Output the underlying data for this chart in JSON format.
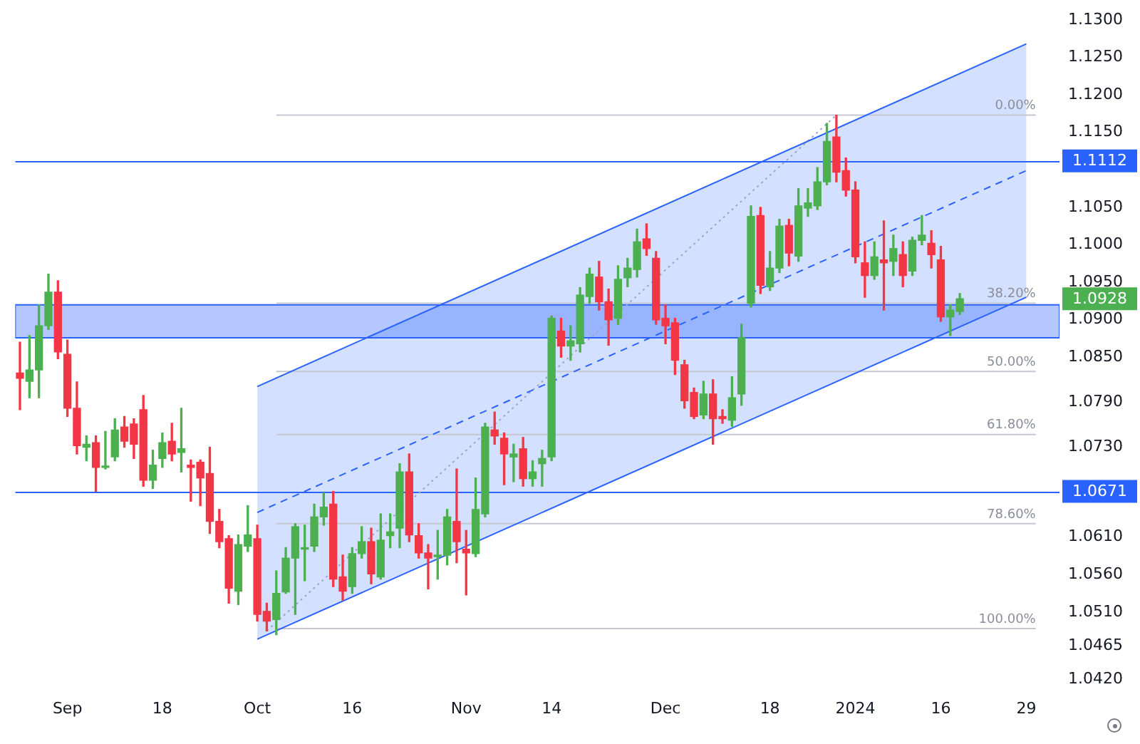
{
  "chart_data": {
    "type": "candlestick",
    "categories": [
      null,
      null,
      null,
      null,
      null,
      "Sep",
      null,
      null,
      null,
      null,
      null,
      null,
      null,
      null,
      null,
      "18",
      null,
      null,
      null,
      null,
      null,
      null,
      null,
      null,
      null,
      "Oct",
      null,
      null,
      null,
      null,
      null,
      null,
      null,
      null,
      null,
      "16",
      null,
      null,
      null,
      null,
      null,
      null,
      null,
      null,
      null,
      null,
      null,
      "Nov",
      null,
      null,
      null,
      null,
      null,
      null,
      null,
      null,
      "14",
      null,
      null,
      null,
      null,
      null,
      null,
      null,
      null,
      null,
      null,
      null,
      "Dec",
      null,
      null,
      null,
      null,
      null,
      null,
      null,
      null,
      null,
      null,
      "18",
      null,
      null,
      null,
      null,
      null,
      null,
      null,
      null,
      "2024",
      null,
      null,
      null,
      null,
      null,
      null,
      null,
      null,
      "16",
      null,
      null,
      null,
      null,
      null,
      null,
      null,
      null,
      "29",
      null,
      null,
      null
    ],
    "ohlc": [
      [
        1.0829,
        1.087,
        1.078,
        1.0822
      ],
      [
        1.0818,
        1.0879,
        1.0796,
        1.0833
      ],
      [
        1.0833,
        1.092,
        1.0796,
        1.0892
      ],
      [
        1.0892,
        1.0961,
        1.0887,
        1.0937
      ],
      [
        1.0937,
        1.0952,
        1.0848,
        1.0857
      ],
      [
        1.0854,
        1.0873,
        1.0771,
        1.0782
      ],
      [
        1.0782,
        1.0817,
        1.0721,
        1.0732
      ],
      [
        1.073,
        1.0745,
        1.0712,
        1.0734
      ],
      [
        1.0736,
        1.0745,
        1.0671,
        1.0703
      ],
      [
        1.0703,
        1.0751,
        1.0701,
        1.0705
      ],
      [
        1.0717,
        1.0768,
        1.0712,
        1.0753
      ],
      [
        1.0757,
        1.0771,
        1.073,
        1.0738
      ],
      [
        1.0761,
        1.0768,
        1.0715,
        1.0734
      ],
      [
        1.078,
        1.0799,
        1.0678,
        1.0686
      ],
      [
        1.0686,
        1.0726,
        1.0675,
        1.0706
      ],
      [
        1.0715,
        1.0749,
        1.0703,
        1.0736
      ],
      [
        1.0738,
        1.0762,
        1.0712,
        1.0721
      ],
      [
        1.0723,
        1.0782,
        1.0697,
        1.0728
      ],
      [
        1.0706,
        1.0713,
        1.0658,
        1.0703
      ],
      [
        1.071,
        1.0713,
        1.0652,
        1.0689
      ],
      [
        1.0695,
        1.073,
        1.0615,
        1.0631
      ],
      [
        1.0631,
        1.0647,
        1.0596,
        1.0604
      ],
      [
        1.0608,
        1.0612,
        1.0522,
        1.0542
      ],
      [
        1.0538,
        1.0613,
        1.052,
        1.06
      ],
      [
        1.0598,
        1.0652,
        1.0591,
        1.0613
      ],
      [
        1.0608,
        1.0626,
        1.0498,
        1.0507
      ],
      [
        1.0511,
        1.0522,
        1.0485,
        1.0498
      ],
      [
        1.05,
        1.0565,
        1.048,
        1.0535
      ],
      [
        1.0537,
        1.0596,
        1.0535,
        1.0582
      ],
      [
        1.0582,
        1.0628,
        1.0507,
        1.0624
      ],
      [
        1.0594,
        1.0626,
        1.0552,
        1.0596
      ],
      [
        1.0598,
        1.0654,
        1.0591,
        1.0637
      ],
      [
        1.0637,
        1.0669,
        1.0626,
        1.065
      ],
      [
        1.0654,
        1.0671,
        1.0544,
        1.0554
      ],
      [
        1.0557,
        1.0586,
        1.0526,
        1.0538
      ],
      [
        1.0544,
        1.0596,
        1.0535,
        1.0588
      ],
      [
        1.0588,
        1.0624,
        1.0582,
        1.0604
      ],
      [
        1.0604,
        1.0622,
        1.0548,
        1.0561
      ],
      [
        1.0557,
        1.0641,
        1.0554,
        1.0606
      ],
      [
        1.0612,
        1.0641,
        1.0596,
        1.0617
      ],
      [
        1.0622,
        1.0708,
        1.0596,
        1.0697
      ],
      [
        1.0697,
        1.0721,
        1.0604,
        1.0613
      ],
      [
        1.0612,
        1.0628,
        1.0582,
        1.0589
      ],
      [
        1.0589,
        1.06,
        1.0541,
        1.0582
      ],
      [
        1.0584,
        1.0619,
        1.0554,
        1.0586
      ],
      [
        1.0586,
        1.0647,
        1.0573,
        1.0637
      ],
      [
        1.0631,
        1.0701,
        1.0576,
        1.0604
      ],
      [
        1.0594,
        1.0619,
        1.0533,
        1.0589
      ],
      [
        1.0588,
        1.0689,
        1.0584,
        1.0647
      ],
      [
        1.0641,
        1.0762,
        1.0637,
        1.0757
      ],
      [
        1.0753,
        1.0777,
        1.0734,
        1.0745
      ],
      [
        1.0742,
        1.0749,
        1.068,
        1.0721
      ],
      [
        1.0717,
        1.0734,
        1.0684,
        1.0721
      ],
      [
        1.0728,
        1.0743,
        1.0678,
        1.0688
      ],
      [
        1.0688,
        1.0712,
        1.0678,
        1.0697
      ],
      [
        1.0708,
        1.0726,
        1.0678,
        1.0715
      ],
      [
        1.0717,
        1.0905,
        1.0712,
        1.0902
      ],
      [
        1.0885,
        1.0902,
        1.085,
        1.0865
      ],
      [
        1.0865,
        1.0892,
        1.0846,
        1.0872
      ],
      [
        1.0868,
        1.0943,
        1.0857,
        1.0933
      ],
      [
        1.0931,
        1.0969,
        1.0922,
        1.0961
      ],
      [
        1.0957,
        1.0978,
        1.0913,
        1.0924
      ],
      [
        1.0924,
        1.0941,
        1.0866,
        1.09
      ],
      [
        1.0902,
        1.0972,
        1.0894,
        1.0954
      ],
      [
        1.0956,
        1.0982,
        1.0944,
        1.0969
      ],
      [
        1.0967,
        1.1021,
        1.0957,
        1.1004
      ],
      [
        1.1008,
        1.1028,
        1.0986,
        1.0995
      ],
      [
        1.0982,
        1.0991,
        1.0894,
        1.09
      ],
      [
        1.0902,
        1.092,
        1.0868,
        1.0892
      ],
      [
        1.0896,
        1.0902,
        1.0827,
        1.0846
      ],
      [
        1.084,
        1.0846,
        1.0782,
        1.0792
      ],
      [
        1.0803,
        1.0809,
        1.0768,
        1.0771
      ],
      [
        1.0773,
        1.0818,
        1.0768,
        1.0801
      ],
      [
        1.0801,
        1.082,
        1.0734,
        1.0768
      ],
      [
        1.0771,
        1.078,
        1.0762,
        1.0768
      ],
      [
        1.0766,
        1.0824,
        1.0758,
        1.0796
      ],
      [
        1.0801,
        1.0894,
        1.0786,
        1.0876
      ],
      [
        1.0922,
        1.1052,
        1.0917,
        1.1038
      ],
      [
        1.1039,
        1.105,
        1.0935,
        1.0946
      ],
      [
        1.0944,
        1.0991,
        1.0939,
        1.0969
      ],
      [
        1.0969,
        1.1034,
        1.0963,
        1.1025
      ],
      [
        1.1026,
        1.1034,
        1.0972,
        1.0989
      ],
      [
        1.0985,
        1.1075,
        1.0978,
        1.1052
      ],
      [
        1.1049,
        1.1075,
        1.1038,
        1.1056
      ],
      [
        1.1052,
        1.1103,
        1.1047,
        1.1084
      ],
      [
        1.1084,
        1.1162,
        1.108,
        1.1138
      ],
      [
        1.1144,
        1.1173,
        1.1084,
        1.1097
      ],
      [
        1.1099,
        1.1116,
        1.1065,
        1.1073
      ],
      [
        1.1073,
        1.1084,
        1.0976,
        1.0984
      ],
      [
        1.0976,
        1.1004,
        1.093,
        1.0959
      ],
      [
        1.0959,
        1.1004,
        1.0954,
        1.0984
      ],
      [
        1.098,
        1.1032,
        1.0913,
        1.0976
      ],
      [
        1.0978,
        1.1013,
        1.0959,
        1.0995
      ],
      [
        1.0987,
        1.1004,
        1.0944,
        1.0959
      ],
      [
        1.0965,
        1.101,
        1.0959,
        1.1006
      ],
      [
        1.1006,
        1.1039,
        1.1,
        1.1013
      ],
      [
        1.1002,
        1.1019,
        1.0969,
        1.0987
      ],
      [
        1.098,
        1.0998,
        1.0898,
        1.0904
      ],
      [
        1.0904,
        1.092,
        1.0879,
        1.0913
      ],
      [
        1.0911,
        1.0935,
        1.0907,
        1.0928
      ],
      null,
      null,
      null,
      null,
      null,
      null,
      null,
      null,
      null,
      null
    ],
    "colors": [
      "#f23645",
      "#4caf50",
      "#4caf50",
      "#4caf50",
      "#f23645",
      "#f23645",
      "#f23645",
      "#4caf50",
      "#f23645",
      "#4caf50",
      "#4caf50",
      "#f23645",
      "#f23645",
      "#f23645",
      "#4caf50",
      "#4caf50",
      "#f23645",
      "#4caf50",
      "#f23645",
      "#f23645",
      "#f23645",
      "#f23645",
      "#f23645",
      "#4caf50",
      "#4caf50",
      "#f23645",
      "#f23645",
      "#4caf50",
      "#4caf50",
      "#4caf50",
      "#4caf50",
      "#4caf50",
      "#4caf50",
      "#f23645",
      "#f23645",
      "#4caf50",
      "#4caf50",
      "#f23645",
      "#4caf50",
      "#4caf50",
      "#4caf50",
      "#f23645",
      "#f23645",
      "#f23645",
      "#4caf50",
      "#4caf50",
      "#f23645",
      "#f23645",
      "#4caf50",
      "#4caf50",
      "#f23645",
      "#f23645",
      "#4caf50",
      "#f23645",
      "#4caf50",
      "#4caf50",
      "#4caf50",
      "#f23645",
      "#4caf50",
      "#4caf50",
      "#4caf50",
      "#f23645",
      "#f23645",
      "#4caf50",
      "#4caf50",
      "#4caf50",
      "#f23645",
      "#f23645",
      "#f23645",
      "#f23645",
      "#f23645",
      "#f23645",
      "#4caf50",
      "#f23645",
      "#f23645",
      "#4caf50",
      "#4caf50",
      "#4caf50",
      "#f23645",
      "#4caf50",
      "#4caf50",
      "#f23645",
      "#4caf50",
      "#4caf50",
      "#4caf50",
      "#4caf50",
      "#f23645",
      "#f23645",
      "#f23645",
      "#f23645",
      "#4caf50",
      "#f23645",
      "#4caf50",
      "#f23645",
      "#4caf50",
      "#4caf50",
      "#f23645",
      "#f23645",
      "#4caf50",
      "#4caf50",
      null,
      null,
      null,
      null,
      null,
      null,
      null,
      null,
      null,
      null
    ],
    "series": [
      {
        "type": "line",
        "color": "#2962ff",
        "line_style": "dashed",
        "values": [
          null,
          null,
          null,
          null,
          null,
          null,
          null,
          null,
          null,
          null,
          null,
          null,
          null,
          null,
          null,
          null,
          null,
          null,
          null,
          null,
          null,
          null,
          null,
          null,
          null,
          1.0643,
          null,
          null,
          null,
          null,
          null,
          null,
          null,
          null,
          null,
          null,
          null,
          null,
          null,
          null,
          null,
          null,
          null,
          null,
          null,
          null,
          null,
          null,
          null,
          null,
          null,
          null,
          null,
          null,
          null,
          null,
          null,
          null,
          null,
          null,
          null,
          null,
          null,
          null,
          null,
          null,
          null,
          null,
          null,
          null,
          null,
          null,
          null,
          null,
          null,
          null,
          null,
          null,
          null,
          null,
          null,
          null,
          null,
          null,
          null,
          null,
          null,
          null,
          null,
          null,
          null,
          null,
          null,
          null,
          null,
          null,
          null,
          null,
          null,
          null,
          null,
          null,
          null,
          null,
          null,
          null,
          1.1099,
          null,
          null,
          null
        ],
        "lower": [
          null,
          null,
          null,
          null,
          null,
          null,
          null,
          null,
          null,
          null,
          null,
          null,
          null,
          null,
          null,
          null,
          null,
          null,
          null,
          null,
          null,
          null,
          null,
          null,
          null,
          1.0474,
          null,
          null,
          null,
          null,
          null,
          null,
          null,
          null,
          null,
          null,
          null,
          null,
          null,
          null,
          null,
          null,
          null,
          null,
          null,
          null,
          null,
          null,
          null,
          null,
          null,
          null,
          null,
          null,
          null,
          null,
          null,
          null,
          null,
          null,
          null,
          null,
          null,
          null,
          null,
          null,
          null,
          null,
          null,
          null,
          null,
          null,
          null,
          null,
          null,
          null,
          null,
          null,
          null,
          null,
          null,
          null,
          null,
          null,
          null,
          null,
          null,
          null,
          null,
          null,
          null,
          null,
          null,
          null,
          null,
          null,
          null,
          null,
          null,
          null,
          null,
          null,
          null,
          null,
          null,
          null,
          1.093,
          null,
          null,
          null
        ],
        "upper": [
          null,
          null,
          null,
          null,
          null,
          null,
          null,
          null,
          null,
          null,
          null,
          null,
          null,
          null,
          null,
          null,
          null,
          null,
          null,
          null,
          null,
          null,
          null,
          null,
          null,
          1.0811,
          null,
          null,
          null,
          null,
          null,
          null,
          null,
          null,
          null,
          null,
          null,
          null,
          null,
          null,
          null,
          null,
          null,
          null,
          null,
          null,
          null,
          null,
          null,
          null,
          null,
          null,
          null,
          null,
          null,
          null,
          null,
          null,
          null,
          null,
          null,
          null,
          null,
          null,
          null,
          null,
          null,
          null,
          null,
          null,
          null,
          null,
          null,
          null,
          null,
          null,
          null,
          null,
          null,
          null,
          null,
          null,
          null,
          null,
          null,
          null,
          null,
          null,
          null,
          null,
          null,
          null,
          null,
          null,
          null,
          null,
          null,
          null,
          null,
          null,
          null,
          null,
          null,
          null,
          null,
          null,
          1.1268,
          null,
          null,
          null
        ]
      },
      {
        "type": "line",
        "color": "#2962ff",
        "line_style": "solid",
        "values": [
          null,
          null,
          null,
          null,
          null,
          null,
          null,
          null,
          null,
          null,
          null,
          null,
          null,
          null,
          null,
          null,
          null,
          null,
          null,
          null,
          null,
          null,
          null,
          null,
          null,
          1.0811,
          null,
          null,
          null,
          null,
          null,
          null,
          null,
          null,
          null,
          null,
          null,
          null,
          null,
          null,
          null,
          null,
          null,
          null,
          null,
          null,
          null,
          null,
          null,
          null,
          null,
          null,
          null,
          null,
          null,
          null,
          null,
          null,
          null,
          null,
          null,
          null,
          null,
          null,
          null,
          null,
          null,
          null,
          null,
          null,
          null,
          null,
          null,
          null,
          null,
          null,
          null,
          null,
          null,
          null,
          null,
          null,
          null,
          null,
          null,
          null,
          null,
          null,
          null,
          null,
          null,
          null,
          null,
          null,
          null,
          null,
          null,
          null,
          null,
          null,
          null,
          null,
          null,
          null,
          null,
          null,
          1.1268,
          null,
          null,
          null
        ]
      },
      {
        "type": "line",
        "color": "#2962ff",
        "line_style": "solid",
        "values": [
          null,
          null,
          null,
          null,
          null,
          null,
          null,
          null,
          null,
          null,
          null,
          null,
          null,
          null,
          null,
          null,
          null,
          null,
          null,
          null,
          null,
          null,
          null,
          null,
          null,
          1.0474,
          null,
          null,
          null,
          null,
          null,
          null,
          null,
          null,
          null,
          null,
          null,
          null,
          null,
          null,
          null,
          null,
          null,
          null,
          null,
          null,
          null,
          null,
          null,
          null,
          null,
          null,
          null,
          null,
          null,
          null,
          null,
          null,
          null,
          null,
          null,
          null,
          null,
          null,
          null,
          null,
          null,
          null,
          null,
          null,
          null,
          null,
          null,
          null,
          null,
          null,
          null,
          null,
          null,
          null,
          null,
          null,
          null,
          null,
          null,
          null,
          null,
          null,
          null,
          null,
          null,
          null,
          null,
          null,
          null,
          null,
          null,
          null,
          null,
          null,
          null,
          null,
          null,
          null,
          null,
          null,
          1.093,
          null,
          null,
          null
        ]
      },
      {
        "type": "line",
        "color": "#9aa6c8",
        "line_style": "dotted",
        "values": [
          null,
          null,
          null,
          null,
          null,
          null,
          null,
          null,
          null,
          null,
          null,
          null,
          null,
          null,
          null,
          null,
          null,
          null,
          null,
          null,
          null,
          null,
          null,
          null,
          null,
          null,
          1.0485,
          null,
          null,
          null,
          null,
          null,
          null,
          null,
          null,
          null,
          null,
          null,
          null,
          null,
          null,
          null,
          null,
          null,
          null,
          null,
          null,
          null,
          null,
          null,
          null,
          null,
          null,
          null,
          null,
          null,
          null,
          null,
          null,
          null,
          null,
          null,
          null,
          null,
          null,
          null,
          null,
          null,
          null,
          null,
          null,
          null,
          null,
          null,
          null,
          null,
          null,
          null,
          null,
          null,
          null,
          null,
          null,
          null,
          null,
          null,
          1.1173,
          null,
          null,
          null,
          null,
          null,
          null,
          null,
          null,
          null,
          null,
          null,
          null,
          null,
          null,
          null,
          null,
          null,
          null,
          null,
          null,
          null,
          null,
          null
        ]
      },
      {
        "type": "line",
        "name": "0.00%",
        "color": "#c4c7cf",
        "line_style": "solid",
        "values": [
          null,
          null,
          null,
          null,
          null,
          null,
          null,
          null,
          null,
          null,
          null,
          null,
          null,
          null,
          null,
          null,
          null,
          null,
          null,
          null,
          null,
          null,
          null,
          null,
          null,
          null,
          null,
          1.1173,
          null,
          null,
          null,
          null,
          null,
          null,
          null,
          null,
          null,
          null,
          null,
          null,
          null,
          null,
          null,
          null,
          null,
          null,
          null,
          null,
          null,
          null,
          null,
          null,
          null,
          null,
          null,
          null,
          null,
          null,
          null,
          null,
          null,
          null,
          null,
          null,
          null,
          null,
          null,
          null,
          null,
          null,
          null,
          null,
          null,
          null,
          null,
          null,
          null,
          null,
          null,
          null,
          null,
          null,
          null,
          null,
          null,
          null,
          null,
          null,
          null,
          null,
          null,
          null,
          null,
          null,
          null,
          null,
          null,
          null,
          null,
          null,
          null,
          null,
          null,
          null,
          null,
          null,
          null,
          1.1173,
          null,
          null
        ]
      },
      {
        "type": "line",
        "name": "38.20%",
        "color": "#c4c7cf",
        "line_style": "solid",
        "values": [
          null,
          null,
          null,
          null,
          null,
          null,
          null,
          null,
          null,
          null,
          null,
          null,
          null,
          null,
          null,
          null,
          null,
          null,
          null,
          null,
          null,
          null,
          null,
          null,
          null,
          null,
          null,
          1.0922,
          null,
          null,
          null,
          null,
          null,
          null,
          null,
          null,
          null,
          null,
          null,
          null,
          null,
          null,
          null,
          null,
          null,
          null,
          null,
          null,
          null,
          null,
          null,
          null,
          null,
          null,
          null,
          null,
          null,
          null,
          null,
          null,
          null,
          null,
          null,
          null,
          null,
          null,
          null,
          null,
          null,
          null,
          null,
          null,
          null,
          null,
          null,
          null,
          null,
          null,
          null,
          null,
          null,
          null,
          null,
          null,
          null,
          null,
          null,
          null,
          null,
          null,
          null,
          null,
          null,
          null,
          null,
          null,
          null,
          null,
          null,
          null,
          null,
          null,
          null,
          null,
          null,
          null,
          null,
          1.0922,
          null,
          null
        ]
      },
      {
        "type": "line",
        "name": "50.00%",
        "color": "#c4c7cf",
        "line_style": "solid",
        "values": [
          null,
          null,
          null,
          null,
          null,
          null,
          null,
          null,
          null,
          null,
          null,
          null,
          null,
          null,
          null,
          null,
          null,
          null,
          null,
          null,
          null,
          null,
          null,
          null,
          null,
          null,
          null,
          1.0831,
          null,
          null,
          null,
          null,
          null,
          null,
          null,
          null,
          null,
          null,
          null,
          null,
          null,
          null,
          null,
          null,
          null,
          null,
          null,
          null,
          null,
          null,
          null,
          null,
          null,
          null,
          null,
          null,
          null,
          null,
          null,
          null,
          null,
          null,
          null,
          null,
          null,
          null,
          null,
          null,
          null,
          null,
          null,
          null,
          null,
          null,
          null,
          null,
          null,
          null,
          null,
          null,
          null,
          null,
          null,
          null,
          null,
          null,
          null,
          null,
          null,
          null,
          null,
          null,
          null,
          null,
          null,
          null,
          null,
          null,
          null,
          null,
          null,
          null,
          null,
          null,
          null,
          null,
          null,
          1.0831,
          null,
          null
        ]
      },
      {
        "type": "line",
        "name": "61.80%",
        "color": "#c4c7cf",
        "line_style": "solid",
        "values": [
          null,
          null,
          null,
          null,
          null,
          null,
          null,
          null,
          null,
          null,
          null,
          null,
          null,
          null,
          null,
          null,
          null,
          null,
          null,
          null,
          null,
          null,
          null,
          null,
          null,
          null,
          null,
          1.0747,
          null,
          null,
          null,
          null,
          null,
          null,
          null,
          null,
          null,
          null,
          null,
          null,
          null,
          null,
          null,
          null,
          null,
          null,
          null,
          null,
          null,
          null,
          null,
          null,
          null,
          null,
          null,
          null,
          null,
          null,
          null,
          null,
          null,
          null,
          null,
          null,
          null,
          null,
          null,
          null,
          null,
          null,
          null,
          null,
          null,
          null,
          null,
          null,
          null,
          null,
          null,
          null,
          null,
          null,
          null,
          null,
          null,
          null,
          null,
          null,
          null,
          null,
          null,
          null,
          null,
          null,
          null,
          null,
          null,
          null,
          null,
          null,
          null,
          null,
          null,
          null,
          null,
          null,
          null,
          1.0747,
          null,
          null
        ]
      },
      {
        "type": "line",
        "name": "78.60%",
        "color": "#c4c7cf",
        "line_style": "solid",
        "values": [
          null,
          null,
          null,
          null,
          null,
          null,
          null,
          null,
          null,
          null,
          null,
          null,
          null,
          null,
          null,
          null,
          null,
          null,
          null,
          null,
          null,
          null,
          null,
          null,
          null,
          null,
          null,
          1.0628,
          null,
          null,
          null,
          null,
          null,
          null,
          null,
          null,
          null,
          null,
          null,
          null,
          null,
          null,
          null,
          null,
          null,
          null,
          null,
          null,
          null,
          null,
          null,
          null,
          null,
          null,
          null,
          null,
          null,
          null,
          null,
          null,
          null,
          null,
          null,
          null,
          null,
          null,
          null,
          null,
          null,
          null,
          null,
          null,
          null,
          null,
          null,
          null,
          null,
          null,
          null,
          null,
          null,
          null,
          null,
          null,
          null,
          null,
          null,
          null,
          null,
          null,
          null,
          null,
          null,
          null,
          null,
          null,
          null,
          null,
          null,
          null,
          null,
          null,
          null,
          null,
          null,
          null,
          null,
          1.0628,
          null,
          null
        ]
      },
      {
        "type": "line",
        "name": "100.00%",
        "color": "#c4c7cf",
        "line_style": "solid",
        "values": [
          null,
          null,
          null,
          null,
          null,
          null,
          null,
          null,
          null,
          null,
          null,
          null,
          null,
          null,
          null,
          null,
          null,
          null,
          null,
          null,
          null,
          null,
          null,
          null,
          null,
          null,
          null,
          1.0488,
          null,
          null,
          null,
          null,
          null,
          null,
          null,
          null,
          null,
          null,
          null,
          null,
          null,
          null,
          null,
          null,
          null,
          null,
          null,
          null,
          null,
          null,
          null,
          null,
          null,
          null,
          null,
          null,
          null,
          null,
          null,
          null,
          null,
          null,
          null,
          null,
          null,
          null,
          null,
          null,
          null,
          null,
          null,
          null,
          null,
          null,
          null,
          null,
          null,
          null,
          null,
          null,
          null,
          null,
          null,
          null,
          null,
          null,
          null,
          null,
          null,
          null,
          null,
          null,
          null,
          null,
          null,
          null,
          null,
          null,
          null,
          null,
          null,
          null,
          null,
          null,
          null,
          null,
          null,
          1.0488,
          null,
          null
        ]
      }
    ],
    "ylim": [
      1.042,
      1.13
    ],
    "yticks": [
      {
        "value": 1.13,
        "label": "1.1300"
      },
      {
        "value": 1.125,
        "label": "1.1250"
      },
      {
        "value": 1.12,
        "label": "1.1200"
      },
      {
        "value": 1.115,
        "label": "1.1150"
      },
      {
        "value": 1.105,
        "label": "1.1050"
      },
      {
        "value": 1.1,
        "label": "1.1000"
      },
      {
        "value": 1.095,
        "label": "1.0950"
      },
      {
        "value": 1.09,
        "label": "1.0900"
      },
      {
        "value": 1.085,
        "label": "1.0850"
      },
      {
        "value": 1.079,
        "label": "1.0790"
      },
      {
        "value": 1.073,
        "label": "1.0730"
      },
      {
        "value": 1.061,
        "label": "1.0610"
      },
      {
        "value": 1.056,
        "label": "1.0560"
      },
      {
        "value": 1.051,
        "label": "1.0510"
      },
      {
        "value": 1.0465,
        "label": "1.0465"
      },
      {
        "value": 1.042,
        "label": "1.0420"
      }
    ],
    "ref_lines": [
      {
        "axis": "y",
        "value": 1.1112,
        "label": "1.1112",
        "color": "#2962ff"
      },
      {
        "axis": "y",
        "value": 1.0671,
        "label": "1.0671",
        "color": "#2962ff"
      }
    ],
    "bands": [
      {
        "axis": "y",
        "from": 1.0876,
        "to": 1.092,
        "color": "#2962ff"
      }
    ],
    "annotations": [
      "1.0928"
    ]
  }
}
